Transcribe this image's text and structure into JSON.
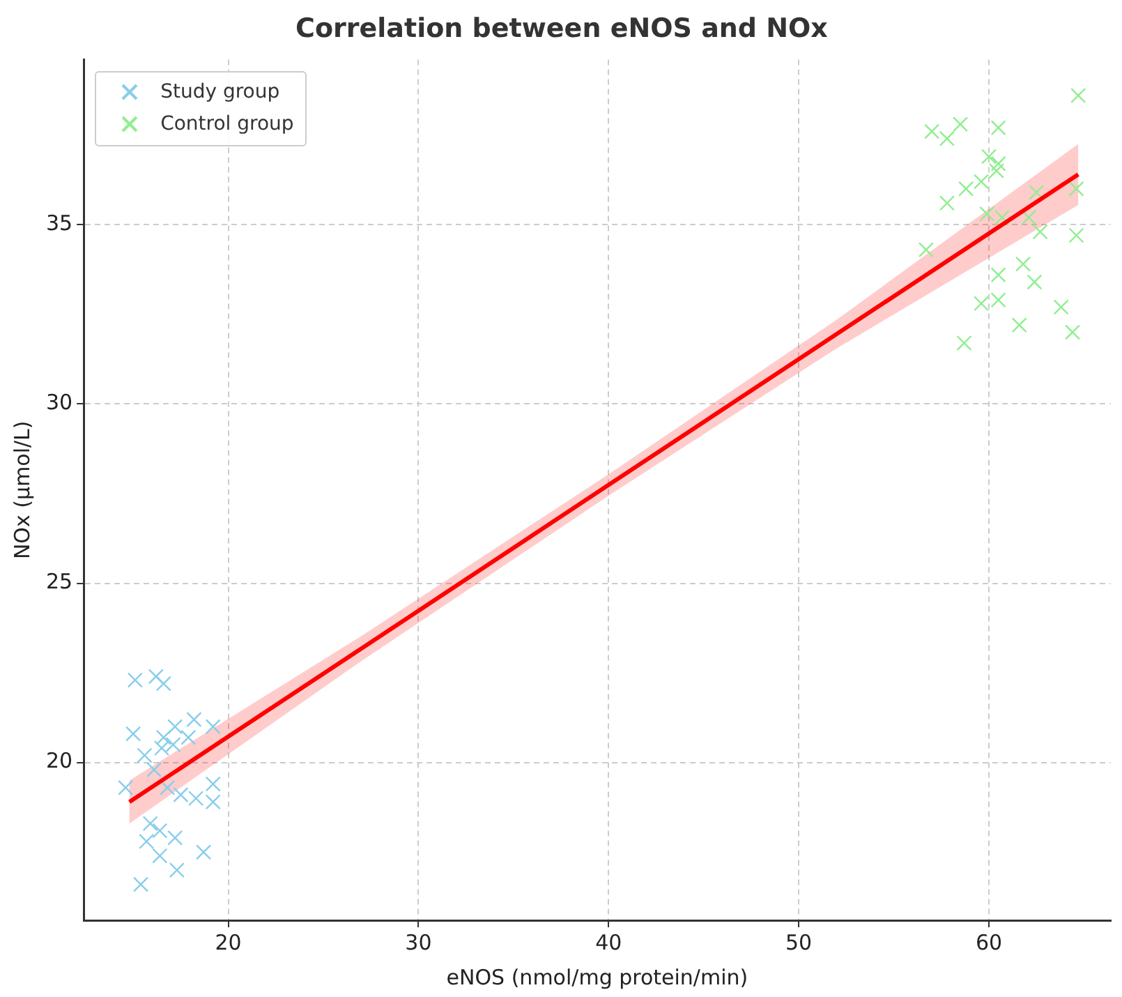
{
  "chart_data": {
    "type": "scatter",
    "title": "Correlation between eNOS and NOx",
    "xlabel": "eNOS (nmol/mg protein/min)",
    "ylabel": "NOx (µmol/L)",
    "xlim": [
      12.4,
      66.4
    ],
    "ylim": [
      15.6,
      39.6
    ],
    "xticks": [
      20,
      30,
      40,
      50,
      60
    ],
    "yticks": [
      20,
      25,
      30,
      35
    ],
    "grid": true,
    "legend": "top left",
    "marker": "cross",
    "series": [
      {
        "name": "Study group",
        "color": "#87ceeb",
        "x": [
          15.1,
          16.2,
          16.6,
          15.0,
          17.2,
          18.2,
          19.2,
          16.6,
          17.9,
          15.6,
          16.5,
          17.1,
          14.6,
          16.1,
          16.8,
          17.5,
          18.3,
          19.2,
          19.2,
          15.9,
          16.4,
          17.2,
          18.7,
          16.4,
          15.7,
          17.3,
          15.4
        ],
        "values": [
          22.3,
          22.4,
          22.2,
          20.8,
          21.0,
          21.2,
          21.0,
          20.7,
          20.7,
          20.2,
          20.4,
          20.5,
          19.3,
          19.8,
          19.3,
          19.1,
          19.0,
          19.4,
          18.9,
          18.3,
          18.1,
          17.9,
          17.5,
          17.4,
          17.8,
          17.0,
          16.6
        ]
      },
      {
        "name": "Control group",
        "color": "#90ee90",
        "x": [
          64.7,
          57.0,
          57.8,
          58.5,
          60.5,
          60.0,
          60.5,
          60.4,
          58.8,
          59.6,
          57.8,
          62.5,
          64.6,
          59.9,
          60.7,
          62.1,
          62.7,
          64.6,
          56.7,
          61.8,
          60.5,
          62.4,
          59.6,
          60.5,
          63.8,
          61.6,
          64.4,
          58.7
        ],
        "values": [
          38.6,
          37.6,
          37.4,
          37.8,
          37.7,
          36.9,
          36.7,
          36.5,
          36.0,
          36.2,
          35.6,
          35.9,
          36.0,
          35.3,
          35.2,
          35.2,
          34.8,
          34.7,
          34.3,
          33.9,
          33.6,
          33.4,
          32.8,
          32.9,
          32.7,
          32.2,
          32.0,
          31.7
        ]
      },
      {
        "type": "line",
        "color": "#ff0000",
        "marker": "none",
        "x": [
          14.8,
          27,
          40,
          52,
          64.7
        ],
        "values": [
          18.9,
          23.18,
          27.74,
          31.95,
          36.4
        ],
        "lower": [
          18.3,
          22.83,
          27.44,
          31.55,
          35.55
        ],
        "upper": [
          19.5,
          23.53,
          28.04,
          32.35,
          37.25
        ]
      }
    ]
  }
}
